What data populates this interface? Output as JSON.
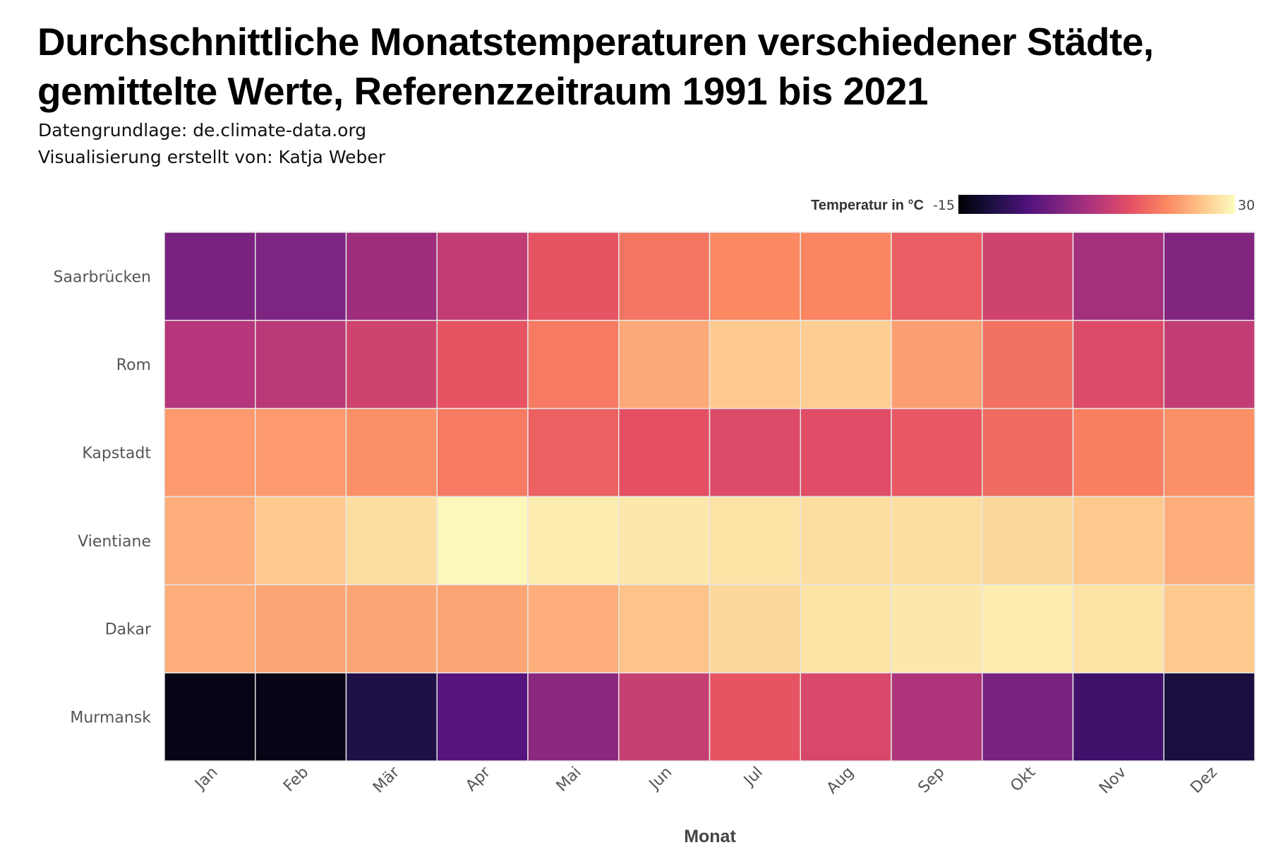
{
  "title": "Durchschnittliche Monatstemperaturen verschiedener Städte, gemittelte Werte, Referenzzeitraum 1991 bis 2021",
  "subtitle_source": "Datengrundlage: de.climate-data.org",
  "subtitle_author": "Visualisierung erstellt von: Katja Weber",
  "chart_data": {
    "type": "heatmap",
    "xlabel": "Monat",
    "ylabel": "",
    "x": [
      "Jan",
      "Feb",
      "Mär",
      "Apr",
      "Mai",
      "Jun",
      "Jul",
      "Aug",
      "Sep",
      "Okt",
      "Nov",
      "Dez"
    ],
    "y": [
      "Saarbrücken",
      "Rom",
      "Kapstadt",
      "Vientiane",
      "Dakar",
      "Murmansk"
    ],
    "values": [
      [
        1,
        1.5,
        5,
        9,
        13.5,
        17,
        19,
        18.5,
        14.5,
        10.5,
        5.5,
        2
      ],
      [
        7.5,
        8,
        10.5,
        13.5,
        17.5,
        22,
        25,
        25.5,
        21,
        16.5,
        12,
        9
      ],
      [
        20.5,
        20.5,
        19.5,
        17.5,
        15,
        13,
        12,
        12.5,
        14,
        16,
        18,
        19.5
      ],
      [
        22.5,
        25,
        27,
        29.5,
        28.5,
        28,
        27.5,
        27,
        27,
        26.5,
        25,
        22.5
      ],
      [
        22.5,
        21.5,
        21.5,
        21.5,
        22.5,
        24.5,
        26.5,
        27.5,
        28,
        28.5,
        27.5,
        25
      ],
      [
        -13.5,
        -13.5,
        -9,
        -3,
        3,
        9.5,
        13.5,
        11.5,
        7,
        1,
        -5.5,
        -10
      ]
    ],
    "colorbar": {
      "label": "Temperatur in °C",
      "min": -15,
      "max": 30,
      "min_label": "-15",
      "max_label": "30"
    },
    "colorscale": "magma",
    "legend_position": "top-right"
  }
}
